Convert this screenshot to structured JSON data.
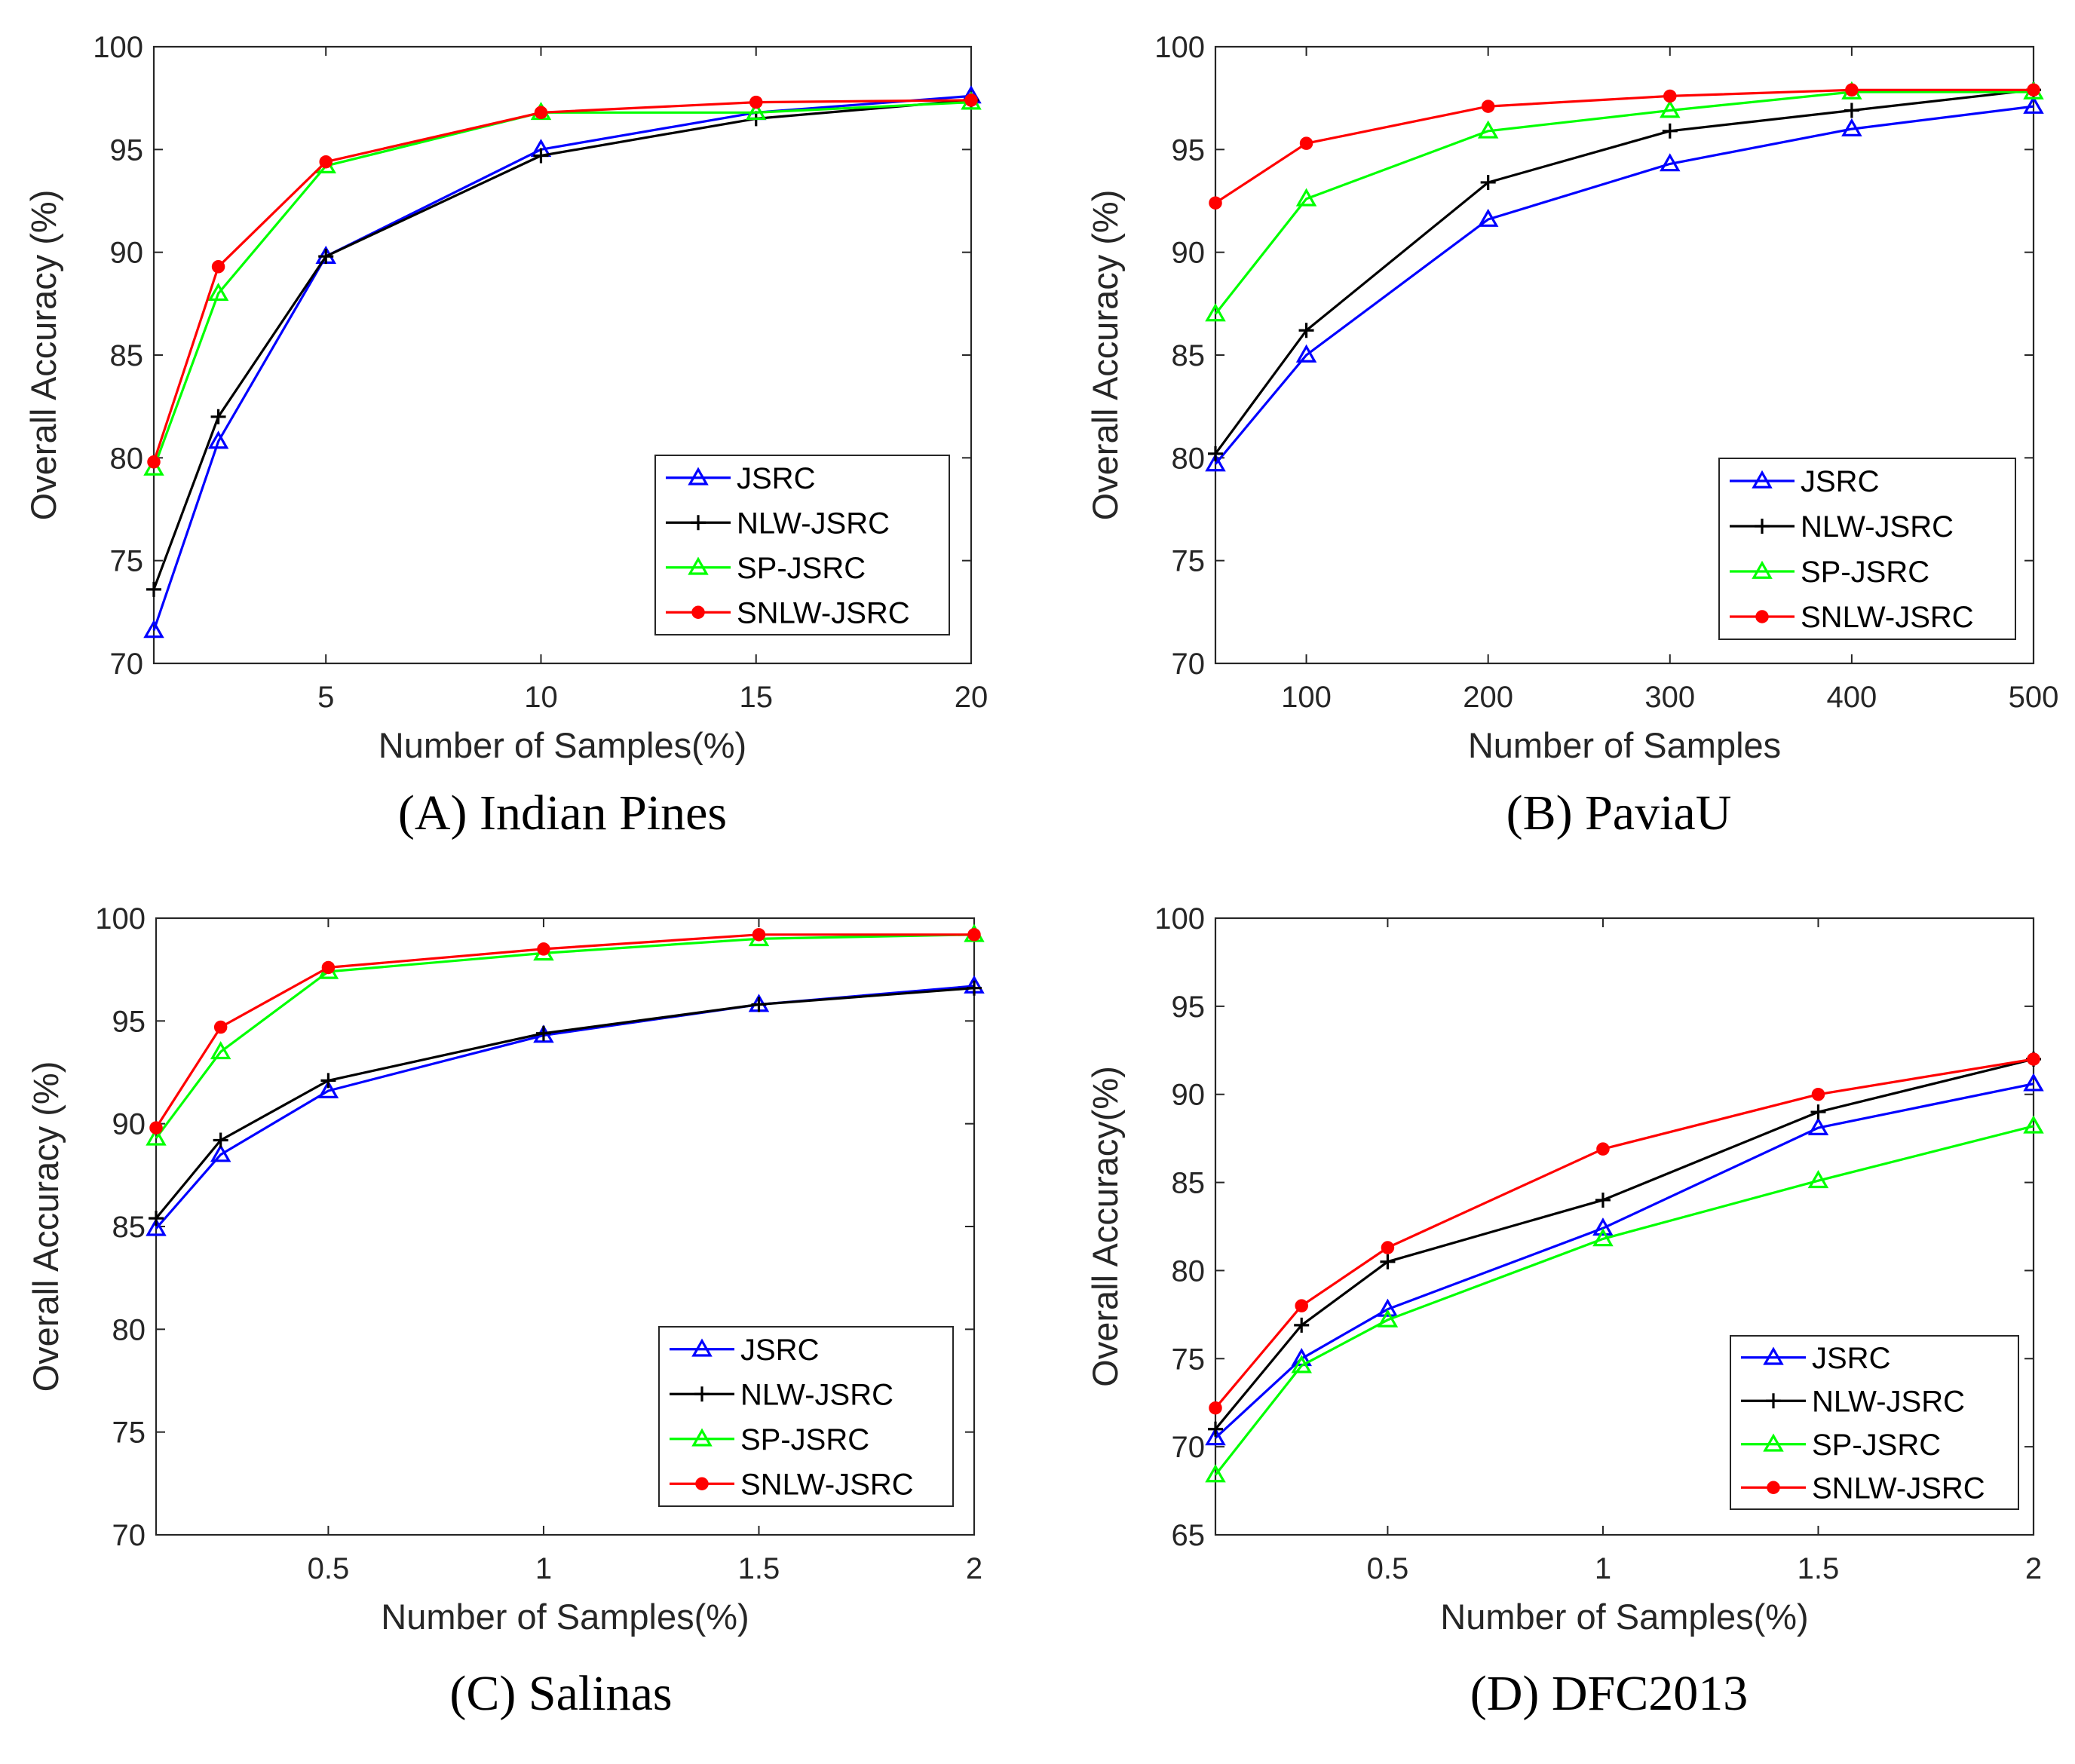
{
  "chart_data": [
    {
      "type": "line",
      "caption": "(A) Indian Pines",
      "xlabel": "Number of Samples(%)",
      "ylabel": "Overall Accuracy (%)",
      "xlim": [
        1,
        20
      ],
      "ylim": [
        70,
        100
      ],
      "xticks": [
        5,
        10,
        15,
        20
      ],
      "yticks": [
        70,
        75,
        80,
        85,
        90,
        95,
        100
      ],
      "x": [
        1,
        2.5,
        5,
        10,
        15,
        20
      ],
      "legend_position": "bottom-right",
      "series": [
        {
          "name": "JSRC",
          "color": "#0000ff",
          "marker": "triangle",
          "values": [
            71.6,
            80.8,
            89.8,
            95.0,
            96.8,
            97.6
          ]
        },
        {
          "name": "NLW-JSRC",
          "color": "#000000",
          "marker": "plus",
          "values": [
            73.6,
            82.0,
            89.8,
            94.7,
            96.5,
            97.4
          ]
        },
        {
          "name": "SP-JSRC",
          "color": "#00ff00",
          "marker": "triangle",
          "values": [
            79.5,
            88.0,
            94.2,
            96.8,
            96.8,
            97.3
          ]
        },
        {
          "name": "SNLW-JSRC",
          "color": "#ff0000",
          "marker": "dot",
          "values": [
            79.8,
            89.3,
            94.4,
            96.8,
            97.3,
            97.4
          ]
        }
      ]
    },
    {
      "type": "line",
      "caption": "(B) PaviaU",
      "xlabel": "Number of Samples",
      "ylabel": "Overall Accuracy (%)",
      "xlim": [
        50,
        500
      ],
      "ylim": [
        70,
        100
      ],
      "xticks": [
        100,
        200,
        300,
        400,
        500
      ],
      "yticks": [
        70,
        75,
        80,
        85,
        90,
        95,
        100
      ],
      "x": [
        50,
        100,
        200,
        300,
        400,
        500
      ],
      "legend_position": "bottom-right",
      "series": [
        {
          "name": "JSRC",
          "color": "#0000ff",
          "marker": "triangle",
          "values": [
            79.7,
            85.0,
            91.6,
            94.3,
            96.0,
            97.1
          ]
        },
        {
          "name": "NLW-JSRC",
          "color": "#000000",
          "marker": "plus",
          "values": [
            80.2,
            86.2,
            93.4,
            95.9,
            96.9,
            97.9
          ]
        },
        {
          "name": "SP-JSRC",
          "color": "#00ff00",
          "marker": "triangle",
          "values": [
            87.0,
            92.6,
            95.9,
            96.9,
            97.8,
            97.8
          ]
        },
        {
          "name": "SNLW-JSRC",
          "color": "#ff0000",
          "marker": "dot",
          "values": [
            92.4,
            95.3,
            97.1,
            97.6,
            97.9,
            97.9
          ]
        }
      ]
    },
    {
      "type": "line",
      "caption": "(C) Salinas",
      "xlabel": "Number of Samples(%)",
      "ylabel": "Overall Accuracy (%)",
      "xlim": [
        0.1,
        2
      ],
      "ylim": [
        70,
        100
      ],
      "xticks": [
        0.5,
        1,
        1.5,
        2
      ],
      "yticks": [
        70,
        75,
        80,
        85,
        90,
        95,
        100
      ],
      "x": [
        0.1,
        0.25,
        0.5,
        1,
        1.5,
        2
      ],
      "legend_position": "bottom-right",
      "series": [
        {
          "name": "JSRC",
          "color": "#0000ff",
          "marker": "triangle",
          "values": [
            84.9,
            88.5,
            91.6,
            94.3,
            95.8,
            96.7
          ]
        },
        {
          "name": "NLW-JSRC",
          "color": "#000000",
          "marker": "plus",
          "values": [
            85.4,
            89.2,
            92.1,
            94.4,
            95.8,
            96.6
          ]
        },
        {
          "name": "SP-JSRC",
          "color": "#00ff00",
          "marker": "triangle",
          "values": [
            89.3,
            93.5,
            97.4,
            98.3,
            99.0,
            99.2
          ]
        },
        {
          "name": "SNLW-JSRC",
          "color": "#ff0000",
          "marker": "dot",
          "values": [
            89.8,
            94.7,
            97.6,
            98.5,
            99.2,
            99.2
          ]
        }
      ]
    },
    {
      "type": "line",
      "caption": "(D) DFC2013",
      "xlabel": "Number of Samples(%)",
      "ylabel": "Overall Accuracy(%)",
      "xlim": [
        0.1,
        2
      ],
      "ylim": [
        65,
        100
      ],
      "xticks": [
        0.5,
        1,
        1.5,
        2
      ],
      "yticks": [
        65,
        70,
        75,
        80,
        85,
        90,
        95,
        100
      ],
      "x": [
        0.1,
        0.3,
        0.5,
        1,
        1.5,
        2
      ],
      "legend_position": "bottom-right",
      "series": [
        {
          "name": "JSRC",
          "color": "#0000ff",
          "marker": "triangle",
          "values": [
            70.5,
            75.0,
            77.8,
            82.4,
            88.1,
            90.6
          ]
        },
        {
          "name": "NLW-JSRC",
          "color": "#000000",
          "marker": "plus",
          "values": [
            71.0,
            76.9,
            80.5,
            84.0,
            89.0,
            92.0
          ]
        },
        {
          "name": "SP-JSRC",
          "color": "#00ff00",
          "marker": "triangle",
          "values": [
            68.4,
            74.6,
            77.2,
            81.8,
            85.1,
            88.2
          ]
        },
        {
          "name": "SNLW-JSRC",
          "color": "#ff0000",
          "marker": "dot",
          "values": [
            72.2,
            78.0,
            81.3,
            86.9,
            90.0,
            92.0
          ]
        }
      ]
    }
  ]
}
